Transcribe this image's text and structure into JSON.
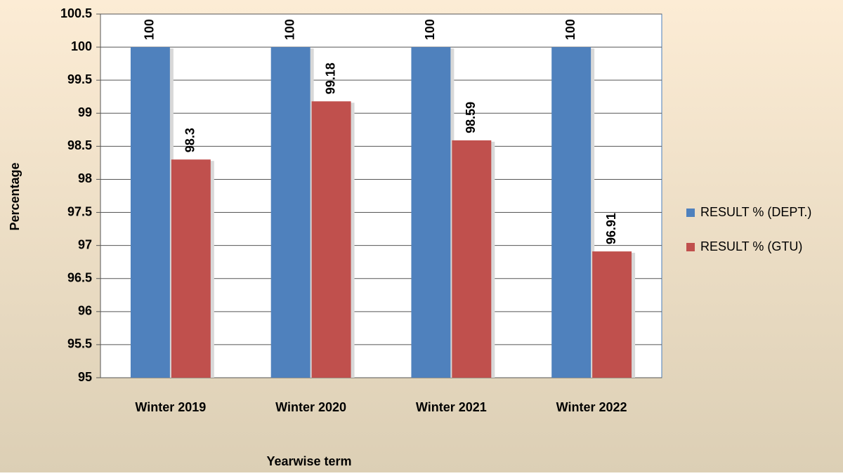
{
  "chart_data": {
    "type": "bar",
    "x_label": "Yearwise term",
    "y_label": "Percentage",
    "categories": [
      "Winter 2019",
      "Winter 2020",
      "Winter 2021",
      "Winter 2022"
    ],
    "series": [
      {
        "name": "RESULT % (DEPT.)",
        "color": "#4f81bd",
        "values": [
          100,
          100,
          100,
          100
        ]
      },
      {
        "name": "RESULT % (GTU)",
        "color": "#c0504d",
        "values": [
          98.3,
          99.18,
          98.59,
          96.91
        ]
      }
    ],
    "ylim": [
      95,
      100.5
    ],
    "yticks": [
      95,
      95.5,
      96,
      96.5,
      97,
      97.5,
      98,
      98.5,
      99,
      99.5,
      100,
      100.5
    ],
    "grid": true,
    "legend": "right"
  }
}
